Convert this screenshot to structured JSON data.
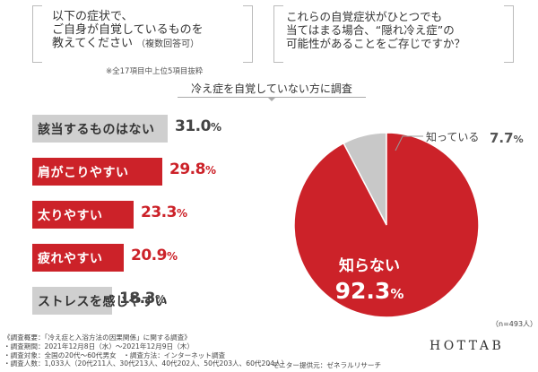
{
  "question_left": {
    "text": "以下の症状で、\nご自身が自覚しているものを\n教えてください",
    "sub": "（複数回答可）"
  },
  "question_right": {
    "text": "これらの自覚症状がひとつでも\n当てはまる場合、“隠れ冷え症”の\n可能性があることをご存じですか？"
  },
  "note": "※全17項目中上位5項目抜粋",
  "subtitle": "冷え症を自覚していない方に調査",
  "chart_data": [
    {
      "type": "bar",
      "orientation": "horizontal",
      "categories": [
        "該当するものはない",
        "肩がこりやすい",
        "太りやすい",
        "疲れやすい",
        "ストレスを感じやすい"
      ],
      "values": [
        31.0,
        29.8,
        23.3,
        20.9,
        18.3
      ],
      "value_labels": [
        "31.0",
        "29.8",
        "23.3",
        "20.9",
        "18.3"
      ],
      "unit": "%",
      "bar_colors": [
        "#cfcfcf",
        "#cc2229",
        "#cc2229",
        "#cc2229",
        "#cfcfcf"
      ],
      "label_colors": [
        "#333333",
        "#ffffff",
        "#ffffff",
        "#ffffff",
        "#333333"
      ],
      "value_colors": [
        "#444444",
        "#cc2229",
        "#cc2229",
        "#cc2229",
        "#444444"
      ]
    },
    {
      "type": "pie",
      "labels": [
        "知っている",
        "知らない"
      ],
      "values": [
        7.7,
        92.3
      ],
      "value_labels": [
        "7.7",
        "92.3"
      ],
      "unit": "%",
      "colors": [
        "#c8c8c8",
        "#cc2229"
      ]
    }
  ],
  "sample_note": "（n=493人）",
  "footer_lines": [
    "《調査概要：「冷え症と入浴方法の因果関係」に関する調査》",
    "・調査期間：2021年12月8日（水）〜2021年12月9日（木）",
    "・調査対象：全国の20代〜60代男女　・調査方法：インターネット調査",
    "・調査人数：1,033人（20代211人、30代213人、40代202人、50代203人、60代204人）"
  ],
  "provider": "・モニター提供元：ゼネラルリサーチ",
  "brand": "HOTTAB"
}
